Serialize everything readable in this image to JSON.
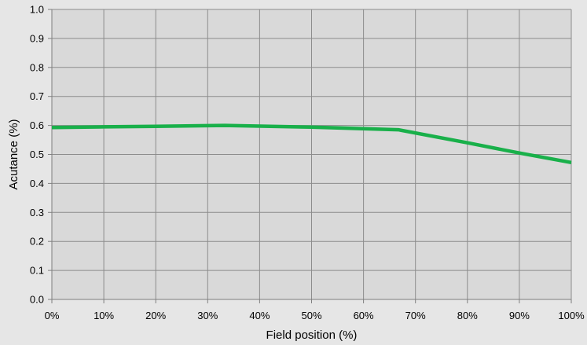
{
  "chart_data": {
    "type": "line",
    "title": "",
    "xlabel": "Field position (%)",
    "ylabel": "Acutance (%)",
    "xlim": [
      0,
      100
    ],
    "ylim": [
      0,
      1.0
    ],
    "x_ticks": [
      0,
      10,
      20,
      30,
      40,
      50,
      60,
      70,
      80,
      90,
      100
    ],
    "x_tick_labels": [
      "0%",
      "10%",
      "20%",
      "30%",
      "40%",
      "50%",
      "60%",
      "70%",
      "80%",
      "90%",
      "100%"
    ],
    "y_ticks": [
      0,
      0.1,
      0.2,
      0.3,
      0.4,
      0.5,
      0.6,
      0.7,
      0.8,
      0.9,
      1.0
    ],
    "y_tick_labels": [
      "0.0",
      "0.1",
      "0.2",
      "0.3",
      "0.4",
      "0.5",
      "0.6",
      "0.7",
      "0.8",
      "0.9",
      "1.0"
    ],
    "grid": true,
    "legend": "none",
    "colors": {
      "plot_background": "#d9d9d9",
      "page_background": "#e6e6e6",
      "grid": "#8c8c8c",
      "line": "#19b04a"
    },
    "series": [
      {
        "x": [
          0,
          10,
          20,
          33.3,
          50,
          66.7,
          80,
          90,
          100
        ],
        "values": [
          0.593,
          0.595,
          0.597,
          0.6,
          0.594,
          0.585,
          0.54,
          0.505,
          0.472
        ]
      }
    ]
  }
}
